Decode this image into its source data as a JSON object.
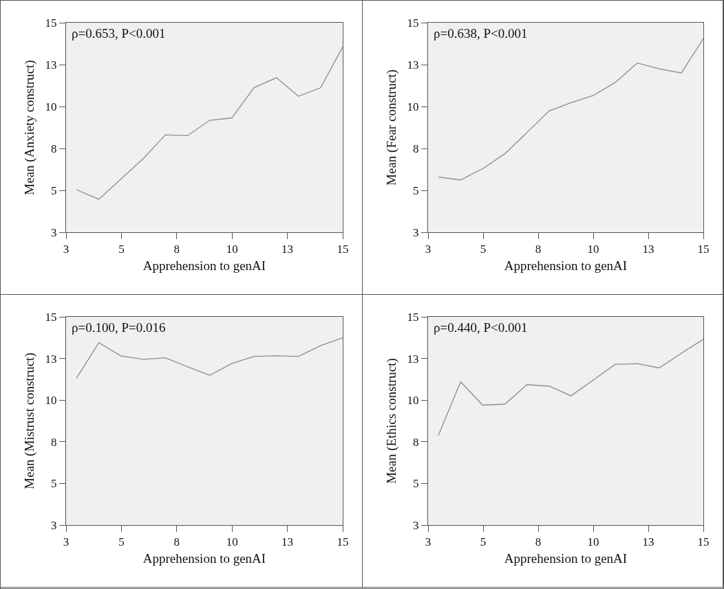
{
  "chart_data": [
    {
      "type": "line",
      "xlabel": "Apprehension to genAI",
      "ylabel": "Mean (Anxiety construct)",
      "annotations": [
        "ρ=0.653, P<0.001"
      ],
      "marker": "none",
      "line_style": "solid",
      "grid": false,
      "xlim": [
        3,
        15
      ],
      "ylim": [
        3,
        15
      ],
      "xticks": [
        {
          "value": 3,
          "label": "3"
        },
        {
          "value": 5.4,
          "label": "5"
        },
        {
          "value": 7.8,
          "label": "8"
        },
        {
          "value": 10.2,
          "label": "10"
        },
        {
          "value": 12.6,
          "label": "13"
        },
        {
          "value": 15,
          "label": "15"
        }
      ],
      "yticks": [
        {
          "value": 3,
          "label": "3"
        },
        {
          "value": 5.4,
          "label": "5"
        },
        {
          "value": 7.8,
          "label": "8"
        },
        {
          "value": 10.2,
          "label": "10"
        },
        {
          "value": 12.6,
          "label": "13"
        },
        {
          "value": 15,
          "label": "15"
        }
      ],
      "x": [
        3.45,
        4.42,
        5.38,
        6.35,
        7.31,
        8.27,
        9.23,
        10.19,
        11.15,
        12.12,
        13.08,
        14.04,
        15.0
      ],
      "series": [
        {
          "color": "#8c8c8c",
          "values": [
            5.44,
            4.89,
            6.05,
            7.22,
            8.58,
            8.53,
            9.41,
            9.55,
            11.28,
            11.85,
            10.79,
            11.27,
            13.62
          ]
        }
      ]
    },
    {
      "type": "line",
      "xlabel": "Apprehension to genAI",
      "ylabel": "Mean (Fear construct)",
      "annotations": [
        "ρ=0.638, P<0.001"
      ],
      "marker": "none",
      "line_style": "solid",
      "grid": false,
      "xlim": [
        3,
        15
      ],
      "ylim": [
        3,
        15
      ],
      "xticks": [
        {
          "value": 3,
          "label": "3"
        },
        {
          "value": 5.4,
          "label": "5"
        },
        {
          "value": 7.8,
          "label": "8"
        },
        {
          "value": 10.2,
          "label": "10"
        },
        {
          "value": 12.6,
          "label": "13"
        },
        {
          "value": 15,
          "label": "15"
        }
      ],
      "yticks": [
        {
          "value": 3,
          "label": "3"
        },
        {
          "value": 5.4,
          "label": "5"
        },
        {
          "value": 7.8,
          "label": "8"
        },
        {
          "value": 10.2,
          "label": "10"
        },
        {
          "value": 12.6,
          "label": "13"
        },
        {
          "value": 15,
          "label": "15"
        }
      ],
      "x": [
        3.45,
        4.42,
        5.38,
        6.35,
        7.31,
        8.27,
        9.23,
        10.19,
        11.15,
        12.12,
        13.08,
        14.04,
        15.0
      ],
      "series": [
        {
          "color": "#8c8c8c",
          "values": [
            6.16,
            6.0,
            6.64,
            7.5,
            8.71,
            9.94,
            10.42,
            10.82,
            11.57,
            12.69,
            12.36,
            12.12,
            14.09
          ]
        }
      ]
    },
    {
      "type": "line",
      "xlabel": "Apprehension to genAI",
      "ylabel": "Mean (Mistrust construct)",
      "annotations": [
        "ρ=0.100, P=0.016"
      ],
      "marker": "none",
      "line_style": "solid",
      "grid": false,
      "xlim": [
        3,
        15
      ],
      "ylim": [
        3,
        15
      ],
      "xticks": [
        {
          "value": 3,
          "label": "3"
        },
        {
          "value": 5.4,
          "label": "5"
        },
        {
          "value": 7.8,
          "label": "8"
        },
        {
          "value": 10.2,
          "label": "10"
        },
        {
          "value": 12.6,
          "label": "13"
        },
        {
          "value": 15,
          "label": "15"
        }
      ],
      "yticks": [
        {
          "value": 3,
          "label": "3"
        },
        {
          "value": 5.4,
          "label": "5"
        },
        {
          "value": 7.8,
          "label": "8"
        },
        {
          "value": 10.2,
          "label": "10"
        },
        {
          "value": 12.6,
          "label": "13"
        },
        {
          "value": 15,
          "label": "15"
        }
      ],
      "x": [
        3.45,
        4.42,
        5.38,
        6.35,
        7.31,
        8.27,
        9.23,
        10.19,
        11.15,
        12.12,
        13.08,
        14.04,
        15.0
      ],
      "series": [
        {
          "color": "#8c8c8c",
          "values": [
            11.46,
            13.51,
            12.75,
            12.55,
            12.64,
            12.12,
            11.63,
            12.31,
            12.72,
            12.76,
            12.72,
            13.34,
            13.79
          ]
        }
      ]
    },
    {
      "type": "line",
      "xlabel": "Apprehension to genAI",
      "ylabel": "Mean (Ethics construct)",
      "annotations": [
        "ρ=0.440, P<0.001"
      ],
      "marker": "none",
      "line_style": "solid",
      "grid": false,
      "xlim": [
        3,
        15
      ],
      "ylim": [
        3,
        15
      ],
      "xticks": [
        {
          "value": 3,
          "label": "3"
        },
        {
          "value": 5.4,
          "label": "5"
        },
        {
          "value": 7.8,
          "label": "8"
        },
        {
          "value": 10.2,
          "label": "10"
        },
        {
          "value": 12.6,
          "label": "13"
        },
        {
          "value": 15,
          "label": "15"
        }
      ],
      "yticks": [
        {
          "value": 3,
          "label": "3"
        },
        {
          "value": 5.4,
          "label": "5"
        },
        {
          "value": 7.8,
          "label": "8"
        },
        {
          "value": 10.2,
          "label": "10"
        },
        {
          "value": 12.6,
          "label": "13"
        },
        {
          "value": 15,
          "label": "15"
        }
      ],
      "x": [
        3.45,
        4.42,
        5.38,
        6.35,
        7.31,
        8.27,
        9.23,
        10.19,
        11.15,
        12.12,
        13.08,
        14.04,
        15.0
      ],
      "series": [
        {
          "color": "#8c8c8c",
          "values": [
            8.17,
            11.26,
            9.91,
            9.97,
            11.09,
            11.01,
            10.45,
            11.35,
            12.26,
            12.3,
            12.06,
            12.9,
            13.71
          ]
        }
      ]
    }
  ]
}
